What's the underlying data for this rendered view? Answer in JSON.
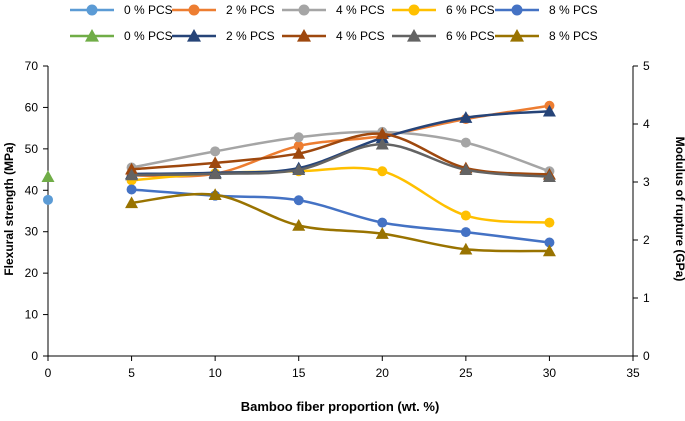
{
  "chart_data": {
    "type": "line",
    "title": "",
    "xlabel": "Bamboo fiber proportion (wt. %)",
    "ylabel_left": "Flexural strength (MPa)",
    "ylabel_right": "Modulus of rupture (GPa)",
    "xlim": [
      0,
      35
    ],
    "ylim_left": [
      0,
      70
    ],
    "ylim_right": [
      0,
      5
    ],
    "x_ticks": [
      0,
      5,
      10,
      15,
      20,
      25,
      30,
      35
    ],
    "y_ticks_left": [
      0,
      10,
      20,
      30,
      40,
      50,
      60,
      70
    ],
    "y_ticks_right": [
      0,
      1,
      2,
      3,
      4,
      5
    ],
    "grid": false,
    "legend_position": "top",
    "series": [
      {
        "name": "0 % PCS",
        "axis": "left",
        "marker": "circle",
        "color": "#5b9bd5",
        "points": [
          [
            0,
            37.7
          ]
        ]
      },
      {
        "name": "2 % PCS",
        "axis": "left",
        "marker": "circle",
        "color": "#ed7d31",
        "points": [
          [
            5,
            43.6
          ],
          [
            10,
            44.0
          ],
          [
            15,
            50.7
          ],
          [
            20,
            53.1
          ],
          [
            25,
            57.2
          ],
          [
            30,
            60.4
          ]
        ]
      },
      {
        "name": "4 % PCS",
        "axis": "left",
        "marker": "circle",
        "color": "#a5a5a5",
        "points": [
          [
            5,
            45.5
          ],
          [
            10,
            49.4
          ],
          [
            15,
            52.8
          ],
          [
            20,
            54.1
          ],
          [
            25,
            51.5
          ],
          [
            30,
            44.6
          ]
        ]
      },
      {
        "name": "6 % PCS",
        "axis": "left",
        "marker": "circle",
        "color": "#ffc000",
        "points": [
          [
            5,
            42.4
          ],
          [
            10,
            44.1
          ],
          [
            15,
            44.6
          ],
          [
            20,
            44.6
          ],
          [
            25,
            33.9
          ],
          [
            30,
            32.2
          ]
        ]
      },
      {
        "name": "8 % PCS",
        "axis": "left",
        "marker": "circle",
        "color": "#4472c4",
        "points": [
          [
            5,
            40.2
          ],
          [
            10,
            38.7
          ],
          [
            15,
            37.6
          ],
          [
            20,
            32.2
          ],
          [
            25,
            29.9
          ],
          [
            30,
            27.4
          ]
        ]
      },
      {
        "name": "0 % PCS",
        "axis": "right",
        "marker": "triangle",
        "color": "#70ad47",
        "points": [
          [
            0,
            3.09
          ]
        ]
      },
      {
        "name": "2 % PCS",
        "axis": "right",
        "marker": "triangle",
        "color": "#264478",
        "points": [
          [
            5,
            3.14
          ],
          [
            10,
            3.16
          ],
          [
            15,
            3.24
          ],
          [
            20,
            3.76
          ],
          [
            25,
            4.11
          ],
          [
            30,
            4.22
          ]
        ]
      },
      {
        "name": "4 % PCS",
        "axis": "right",
        "marker": "triangle",
        "color": "#9e480e",
        "points": [
          [
            5,
            3.22
          ],
          [
            10,
            3.33
          ],
          [
            15,
            3.49
          ],
          [
            20,
            3.83
          ],
          [
            25,
            3.24
          ],
          [
            30,
            3.13
          ]
        ]
      },
      {
        "name": "6 % PCS",
        "axis": "right",
        "marker": "triangle",
        "color": "#636363",
        "points": [
          [
            5,
            3.12
          ],
          [
            10,
            3.14
          ],
          [
            15,
            3.21
          ],
          [
            20,
            3.65
          ],
          [
            25,
            3.21
          ],
          [
            30,
            3.09
          ]
        ]
      },
      {
        "name": "8 % PCS",
        "axis": "right",
        "marker": "triangle",
        "color": "#997300",
        "points": [
          [
            5,
            2.64
          ],
          [
            10,
            2.78
          ],
          [
            15,
            2.25
          ],
          [
            20,
            2.11
          ],
          [
            25,
            1.84
          ],
          [
            30,
            1.81
          ]
        ]
      }
    ]
  }
}
